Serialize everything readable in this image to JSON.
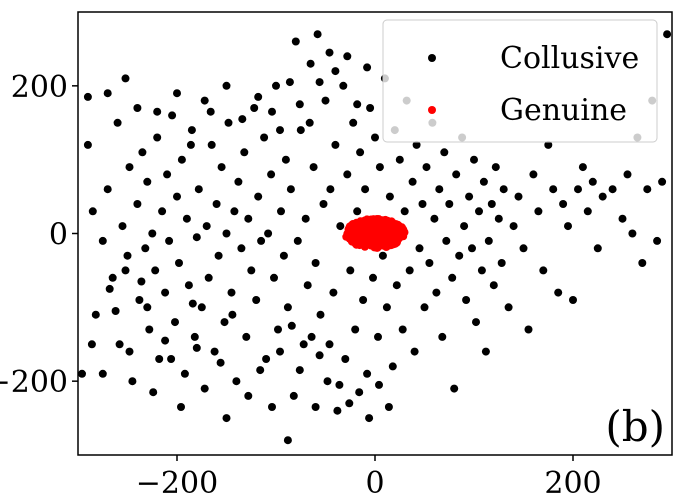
{
  "chart_data": {
    "type": "scatter",
    "title": "",
    "xlabel": "",
    "ylabel": "",
    "xlim": [
      -300,
      300
    ],
    "ylim": [
      -300,
      300
    ],
    "xticks": [
      -200,
      0,
      200
    ],
    "yticks": [
      -200,
      0,
      200
    ],
    "xtick_labels": [
      "−200",
      "0",
      "200"
    ],
    "ytick_labels": [
      "−200",
      "0",
      "200"
    ],
    "grid": false,
    "legend_position": "top-right",
    "annotation": "(b)",
    "series": [
      {
        "name": "Collusive",
        "color": "#000000",
        "points": [
          [
            -290,
            120
          ],
          [
            -285,
            30
          ],
          [
            -282,
            -110
          ],
          [
            -275,
            -10
          ],
          [
            -270,
            60
          ],
          [
            -265,
            -60
          ],
          [
            -260,
            150
          ],
          [
            -258,
            -150
          ],
          [
            -255,
            10
          ],
          [
            -250,
            -30
          ],
          [
            -248,
            90
          ],
          [
            -245,
            -200
          ],
          [
            -240,
            40
          ],
          [
            -238,
            -90
          ],
          [
            -235,
            110
          ],
          [
            -232,
            -20
          ],
          [
            -230,
            70
          ],
          [
            -228,
            -130
          ],
          [
            -225,
            0
          ],
          [
            -222,
            -50
          ],
          [
            -220,
            130
          ],
          [
            -218,
            -170
          ],
          [
            -215,
            30
          ],
          [
            -212,
            -80
          ],
          [
            -210,
            80
          ],
          [
            -208,
            -10
          ],
          [
            -205,
            160
          ],
          [
            -202,
            -120
          ],
          [
            -200,
            50
          ],
          [
            -198,
            -40
          ],
          [
            -195,
            100
          ],
          [
            -192,
            -190
          ],
          [
            -190,
            20
          ],
          [
            -188,
            -70
          ],
          [
            -185,
            140
          ],
          [
            -182,
            -140
          ],
          [
            -180,
            -5
          ],
          [
            -178,
            60
          ],
          [
            -175,
            -100
          ],
          [
            -172,
            180
          ],
          [
            -170,
            10
          ],
          [
            -168,
            -60
          ],
          [
            -165,
            120
          ],
          [
            -162,
            -160
          ],
          [
            -160,
            40
          ],
          [
            -158,
            -30
          ],
          [
            -155,
            90
          ],
          [
            -152,
            -120
          ],
          [
            -150,
            0
          ],
          [
            -148,
            150
          ],
          [
            -145,
            -80
          ],
          [
            -142,
            30
          ],
          [
            -140,
            -200
          ],
          [
            -138,
            70
          ],
          [
            -135,
            -20
          ],
          [
            -132,
            110
          ],
          [
            -130,
            -140
          ],
          [
            -128,
            20
          ],
          [
            -125,
            -50
          ],
          [
            -122,
            170
          ],
          [
            -120,
            -90
          ],
          [
            -118,
            50
          ],
          [
            -115,
            -10
          ],
          [
            -112,
            130
          ],
          [
            -110,
            -170
          ],
          [
            -108,
            0
          ],
          [
            -105,
            80
          ],
          [
            -102,
            -60
          ],
          [
            -100,
            200
          ],
          [
            -98,
            -130
          ],
          [
            -95,
            30
          ],
          [
            -92,
            -30
          ],
          [
            -90,
            100
          ],
          [
            -88,
            -100
          ],
          [
            -85,
            60
          ],
          [
            -82,
            -220
          ],
          [
            -80,
            260
          ],
          [
            -78,
            -10
          ],
          [
            -75,
            140
          ],
          [
            -72,
            -150
          ],
          [
            -70,
            20
          ],
          [
            -68,
            -70
          ],
          [
            -65,
            230
          ],
          [
            -62,
            90
          ],
          [
            -60,
            -40
          ],
          [
            -58,
            270
          ],
          [
            -55,
            -110
          ],
          [
            -52,
            40
          ],
          [
            -50,
            180
          ],
          [
            -48,
            -200
          ],
          [
            -45,
            60
          ],
          [
            -42,
            -80
          ],
          [
            -40,
            120
          ],
          [
            -38,
            -240
          ],
          [
            -35,
            10
          ],
          [
            -32,
            200
          ],
          [
            -30,
            -170
          ],
          [
            -28,
            80
          ],
          [
            -25,
            -50
          ],
          [
            -22,
            150
          ],
          [
            -20,
            -130
          ],
          [
            -18,
            30
          ],
          [
            -15,
            110
          ],
          [
            -12,
            -90
          ],
          [
            -10,
            60
          ],
          [
            -8,
            -190
          ],
          [
            -5,
            170
          ],
          [
            -2,
            -60
          ],
          [
            0,
            130
          ],
          [
            3,
            -140
          ],
          [
            5,
            90
          ],
          [
            8,
            -30
          ],
          [
            10,
            210
          ],
          [
            12,
            -100
          ],
          [
            15,
            50
          ],
          [
            18,
            -180
          ],
          [
            20,
            140
          ],
          [
            22,
            -70
          ],
          [
            25,
            100
          ],
          [
            28,
            -130
          ],
          [
            30,
            30
          ],
          [
            32,
            180
          ],
          [
            35,
            -50
          ],
          [
            38,
            70
          ],
          [
            40,
            -160
          ],
          [
            42,
            120
          ],
          [
            45,
            -20
          ],
          [
            48,
            40
          ],
          [
            50,
            -100
          ],
          [
            52,
            90
          ],
          [
            55,
            -40
          ],
          [
            58,
            150
          ],
          [
            60,
            20
          ],
          [
            62,
            -80
          ],
          [
            65,
            60
          ],
          [
            68,
            -140
          ],
          [
            70,
            110
          ],
          [
            72,
            -10
          ],
          [
            75,
            40
          ],
          [
            78,
            -60
          ],
          [
            80,
            -210
          ],
          [
            82,
            80
          ],
          [
            85,
            -30
          ],
          [
            88,
            130
          ],
          [
            90,
            10
          ],
          [
            92,
            -90
          ],
          [
            95,
            50
          ],
          [
            98,
            -20
          ],
          [
            100,
            100
          ],
          [
            102,
            -120
          ],
          [
            105,
            30
          ],
          [
            108,
            -50
          ],
          [
            110,
            70
          ],
          [
            112,
            -160
          ],
          [
            115,
            -10
          ],
          [
            118,
            40
          ],
          [
            120,
            -70
          ],
          [
            122,
            90
          ],
          [
            125,
            20
          ],
          [
            128,
            -40
          ],
          [
            130,
            60
          ],
          [
            135,
            -100
          ],
          [
            140,
            10
          ],
          [
            145,
            50
          ],
          [
            150,
            -20
          ],
          [
            155,
            -130
          ],
          [
            160,
            80
          ],
          [
            165,
            30
          ],
          [
            170,
            -50
          ],
          [
            175,
            120
          ],
          [
            180,
            60
          ],
          [
            185,
            -80
          ],
          [
            190,
            40
          ],
          [
            195,
            10
          ],
          [
            200,
            -90
          ],
          [
            205,
            60
          ],
          [
            210,
            90
          ],
          [
            215,
            30
          ],
          [
            220,
            70
          ],
          [
            225,
            -20
          ],
          [
            230,
            50
          ],
          [
            240,
            60
          ],
          [
            250,
            20
          ],
          [
            255,
            80
          ],
          [
            260,
            0
          ],
          [
            265,
            130
          ],
          [
            270,
            -40
          ],
          [
            275,
            60
          ],
          [
            280,
            180
          ],
          [
            285,
            -10
          ],
          [
            290,
            70
          ],
          [
            295,
            270
          ],
          [
            -275,
            -190
          ],
          [
            -262,
            -105
          ],
          [
            -248,
            -160
          ],
          [
            -236,
            -65
          ],
          [
            -224,
            -215
          ],
          [
            -212,
            -145
          ],
          [
            -196,
            -235
          ],
          [
            -184,
            -95
          ],
          [
            -172,
            -210
          ],
          [
            -156,
            -175
          ],
          [
            -144,
            -110
          ],
          [
            -128,
            -220
          ],
          [
            -116,
            -185
          ],
          [
            -104,
            -235
          ],
          [
            -96,
            -160
          ],
          [
            -84,
            -125
          ],
          [
            -76,
            -185
          ],
          [
            -64,
            -140
          ],
          [
            -56,
            -165
          ],
          [
            -46,
            -150
          ],
          [
            -36,
            -205
          ],
          [
            -26,
            -230
          ],
          [
            -16,
            -215
          ],
          [
            -6,
            -250
          ],
          [
            4,
            -205
          ],
          [
            14,
            -235
          ],
          [
            -60,
            -235
          ],
          [
            -88,
            -280
          ],
          [
            -150,
            -250
          ],
          [
            -180,
            -155
          ],
          [
            -206,
            -170
          ],
          [
            -230,
            -100
          ],
          [
            -252,
            -50
          ],
          [
            -268,
            -75
          ],
          [
            -286,
            -150
          ],
          [
            -296,
            -190
          ],
          [
            -240,
            170
          ],
          [
            -220,
            165
          ],
          [
            -200,
            190
          ],
          [
            -186,
            120
          ],
          [
            -166,
            165
          ],
          [
            -150,
            200
          ],
          [
            -134,
            155
          ],
          [
            -118,
            185
          ],
          [
            -104,
            165
          ],
          [
            -96,
            140
          ],
          [
            -86,
            205
          ],
          [
            -76,
            175
          ],
          [
            -66,
            150
          ],
          [
            -56,
            205
          ],
          [
            -46,
            245
          ],
          [
            -40,
            220
          ],
          [
            -28,
            240
          ],
          [
            -18,
            175
          ],
          [
            -8,
            225
          ],
          [
            -270,
            190
          ],
          [
            -252,
            210
          ],
          [
            -290,
            185
          ]
        ]
      },
      {
        "name": "Genuine",
        "color": "#ff0000",
        "center": [
          0,
          0
        ],
        "spread": [
          30,
          20
        ]
      }
    ]
  }
}
